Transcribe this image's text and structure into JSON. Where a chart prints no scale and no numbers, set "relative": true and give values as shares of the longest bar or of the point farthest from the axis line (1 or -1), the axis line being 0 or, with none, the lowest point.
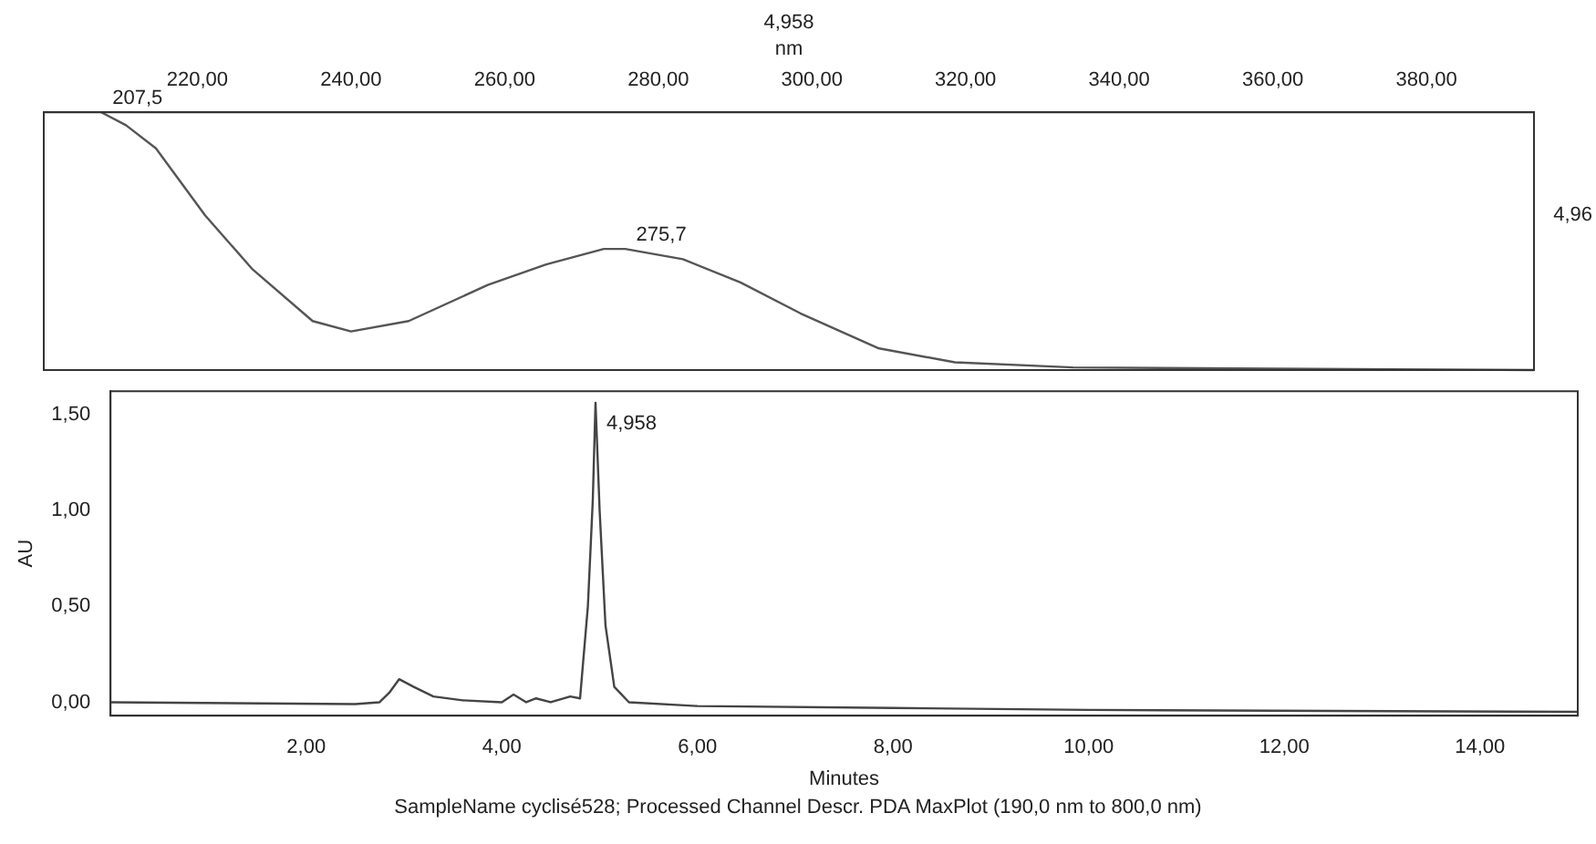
{
  "chart_data": [
    {
      "type": "line",
      "title": "4,958",
      "xlabel": "nm",
      "relative": true,
      "marker": "none",
      "xlim": [
        200,
        394
      ],
      "xticks": [
        {
          "value": 220,
          "label": "220,00"
        },
        {
          "value": 240,
          "label": "240,00"
        },
        {
          "value": 260,
          "label": "260,00"
        },
        {
          "value": 280,
          "label": "280,00"
        },
        {
          "value": 300,
          "label": "300,00"
        },
        {
          "value": 320,
          "label": "320,00"
        },
        {
          "value": 340,
          "label": "340,00"
        },
        {
          "value": 360,
          "label": "360,00"
        },
        {
          "value": 380,
          "label": "380,00"
        }
      ],
      "series": [
        {
          "color": "#555555",
          "x": [
            207.5,
            210.7,
            214.6,
            221,
            227.2,
            235,
            240,
            247.5,
            257.8,
            265.4,
            272.9,
            275.7,
            283.2,
            290.7,
            298.5,
            308.6,
            318.6,
            334,
            394
          ],
          "values": [
            1,
            0.95,
            0.86,
            0.6,
            0.39,
            0.19,
            0.15,
            0.19,
            0.33,
            0.41,
            0.47,
            0.47,
            0.43,
            0.34,
            0.22,
            0.085,
            0.03,
            0.01,
            0
          ]
        }
      ],
      "annotations": [
        {
          "text": "207,5",
          "x": 207.5,
          "y": 1
        },
        {
          "text": "275,7",
          "x": 275.7,
          "y": 0.47
        },
        "4,96"
      ]
    },
    {
      "type": "line",
      "xlabel": "Minutes",
      "ylabel": "AU",
      "marker": "none",
      "xlim": [
        0,
        15
      ],
      "ylim": [
        -0.07,
        1.62
      ],
      "xticks": [
        {
          "value": 2,
          "label": "2,00"
        },
        {
          "value": 4,
          "label": "4,00"
        },
        {
          "value": 6,
          "label": "6,00"
        },
        {
          "value": 8,
          "label": "8,00"
        },
        {
          "value": 10,
          "label": "10,00"
        },
        {
          "value": 12,
          "label": "12,00"
        },
        {
          "value": 14,
          "label": "14,00"
        }
      ],
      "yticks": [
        {
          "value": 0,
          "label": "0,00"
        },
        {
          "value": 0.5,
          "label": "0,50"
        },
        {
          "value": 1,
          "label": "1,00"
        },
        {
          "value": 1.5,
          "label": "1,50"
        }
      ],
      "series": [
        {
          "color": "#444444",
          "x": [
            0,
            2.5,
            2.75,
            2.85,
            2.95,
            3.1,
            3.3,
            3.6,
            4,
            4.12,
            4.25,
            4.35,
            4.5,
            4.7,
            4.8,
            4.88,
            4.93,
            4.958,
            5,
            5.06,
            5.15,
            5.3,
            6,
            8,
            10,
            15
          ],
          "values": [
            0,
            -0.01,
            0,
            0.05,
            0.12,
            0.08,
            0.03,
            0.01,
            0,
            0.04,
            0,
            0.02,
            0,
            0.03,
            0.02,
            0.5,
            1.05,
            1.56,
            1,
            0.4,
            0.08,
            0,
            -0.02,
            -0.03,
            -0.04,
            -0.05
          ]
        }
      ],
      "annotations": [
        {
          "text": "4,958",
          "x": 4.958,
          "y": 1.56
        },
        "SampleName cyclisé528; Processed Channel Descr. PDA MaxPlot (190,0 nm to 800,0 nm)"
      ]
    }
  ]
}
